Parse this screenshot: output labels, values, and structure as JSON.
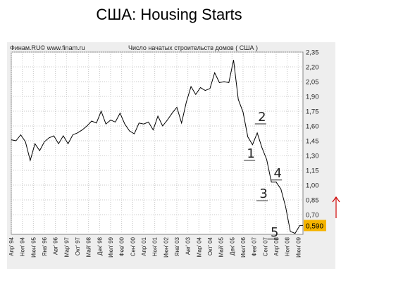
{
  "page": {
    "title": "США: Housing Starts"
  },
  "chart_header": {
    "source": "Финам.RU© www.finam.ru",
    "subtitle": "Число начатых строительств домов ( США )"
  },
  "colors": {
    "line": "#000000",
    "plot_bg": "#ffffff",
    "frame_bg": "#eeeeee",
    "grid": "#c8c8c8",
    "last_value_bg": "#f5b400",
    "arrow": "#cc0000"
  },
  "chart_data": {
    "type": "line",
    "title": "США: Housing Starts",
    "xlabel": "",
    "ylabel": "",
    "ylim": [
      0.5,
      2.35
    ],
    "yticks": [
      2.35,
      2.2,
      2.05,
      1.9,
      1.75,
      1.6,
      1.45,
      1.3,
      1.15,
      1.0,
      0.85,
      0.7
    ],
    "ytick_labels": [
      "2,35",
      "2,20",
      "2,05",
      "1,90",
      "1,75",
      "1,60",
      "1,45",
      "1,30",
      "1,15",
      "1,00",
      "0,85",
      "0,70"
    ],
    "grid": true,
    "x_range": [
      "1994-04",
      "2009-09"
    ],
    "x_tick_labels": [
      {
        "date": "1994-04",
        "label": "Апр' 94"
      },
      {
        "date": "1994-11",
        "label": "Ноя' 94"
      },
      {
        "date": "1995-06",
        "label": "Июн' 95"
      },
      {
        "date": "1996-01",
        "label": "Янв' 96"
      },
      {
        "date": "1996-08",
        "label": "Авг' 96"
      },
      {
        "date": "1997-03",
        "label": "Мар' 97"
      },
      {
        "date": "1997-10",
        "label": "Окт' 97"
      },
      {
        "date": "1998-05",
        "label": "Май' 98"
      },
      {
        "date": "1998-12",
        "label": "Дек' 98"
      },
      {
        "date": "1999-07",
        "label": "Июл' 99"
      },
      {
        "date": "2000-02",
        "label": "Фев' 00"
      },
      {
        "date": "2000-09",
        "label": "Сен' 00"
      },
      {
        "date": "2001-04",
        "label": "Апр' 01"
      },
      {
        "date": "2001-11",
        "label": "Ноя' 01"
      },
      {
        "date": "2002-06",
        "label": "Июн' 02"
      },
      {
        "date": "2003-01",
        "label": "Янв' 03"
      },
      {
        "date": "2003-08",
        "label": "Авг' 03"
      },
      {
        "date": "2004-03",
        "label": "Мар' 04"
      },
      {
        "date": "2004-10",
        "label": "Окт' 04"
      },
      {
        "date": "2005-05",
        "label": "Май' 05"
      },
      {
        "date": "2005-12",
        "label": "Дек' 05"
      },
      {
        "date": "2006-07",
        "label": "Июл' 06"
      },
      {
        "date": "2007-02",
        "label": "Фев' 07"
      },
      {
        "date": "2007-09",
        "label": "Сен' 07"
      },
      {
        "date": "2008-04",
        "label": "Апр' 08"
      },
      {
        "date": "2008-11",
        "label": "Ноя' 08"
      },
      {
        "date": "2009-06",
        "label": "Июн' 09"
      }
    ],
    "series": [
      {
        "points": [
          [
            "1994-04",
            1.46
          ],
          [
            "1994-07",
            1.45
          ],
          [
            "1994-10",
            1.51
          ],
          [
            "1995-01",
            1.44
          ],
          [
            "1995-04",
            1.25
          ],
          [
            "1995-07",
            1.42
          ],
          [
            "1995-10",
            1.35
          ],
          [
            "1996-01",
            1.44
          ],
          [
            "1996-04",
            1.48
          ],
          [
            "1996-07",
            1.5
          ],
          [
            "1996-10",
            1.42
          ],
          [
            "1997-01",
            1.5
          ],
          [
            "1997-04",
            1.42
          ],
          [
            "1997-07",
            1.51
          ],
          [
            "1997-10",
            1.53
          ],
          [
            "1998-01",
            1.56
          ],
          [
            "1998-04",
            1.6
          ],
          [
            "1998-07",
            1.65
          ],
          [
            "1998-10",
            1.63
          ],
          [
            "1999-01",
            1.75
          ],
          [
            "1999-04",
            1.62
          ],
          [
            "1999-07",
            1.66
          ],
          [
            "1999-10",
            1.64
          ],
          [
            "2000-01",
            1.73
          ],
          [
            "2000-04",
            1.62
          ],
          [
            "2000-07",
            1.55
          ],
          [
            "2000-10",
            1.52
          ],
          [
            "2001-01",
            1.63
          ],
          [
            "2001-04",
            1.62
          ],
          [
            "2001-07",
            1.64
          ],
          [
            "2001-10",
            1.56
          ],
          [
            "2002-01",
            1.7
          ],
          [
            "2002-04",
            1.6
          ],
          [
            "2002-07",
            1.66
          ],
          [
            "2002-10",
            1.73
          ],
          [
            "2003-01",
            1.79
          ],
          [
            "2003-04",
            1.63
          ],
          [
            "2003-07",
            1.84
          ],
          [
            "2003-10",
            2.0
          ],
          [
            "2004-01",
            1.92
          ],
          [
            "2004-04",
            1.99
          ],
          [
            "2004-07",
            1.96
          ],
          [
            "2004-10",
            1.98
          ],
          [
            "2005-01",
            2.14
          ],
          [
            "2005-04",
            2.04
          ],
          [
            "2005-07",
            2.05
          ],
          [
            "2005-10",
            2.04
          ],
          [
            "2006-01",
            2.27
          ],
          [
            "2006-04",
            1.87
          ],
          [
            "2006-07",
            1.74
          ],
          [
            "2006-10",
            1.49
          ],
          [
            "2007-01",
            1.41
          ],
          [
            "2007-04",
            1.53
          ],
          [
            "2007-07",
            1.38
          ],
          [
            "2007-10",
            1.26
          ],
          [
            "2008-01",
            1.03
          ],
          [
            "2008-04",
            1.03
          ],
          [
            "2008-07",
            0.96
          ],
          [
            "2008-10",
            0.78
          ],
          [
            "2009-01",
            0.53
          ],
          [
            "2009-04",
            0.51
          ],
          [
            "2009-07",
            0.59
          ],
          [
            "2009-09",
            0.59
          ]
        ]
      }
    ],
    "last_value": {
      "value": 0.59,
      "label": "0,590"
    },
    "annotations": [
      {
        "text": "1",
        "date": "2006-12",
        "y": 1.28
      },
      {
        "text": "2",
        "date": "2007-07",
        "y": 1.65
      },
      {
        "text": "3",
        "date": "2007-08",
        "y": 0.87
      },
      {
        "text": "4",
        "date": "2008-05",
        "y": 1.08
      },
      {
        "text": "5",
        "date": "2008-03",
        "y": 0.48
      }
    ]
  }
}
